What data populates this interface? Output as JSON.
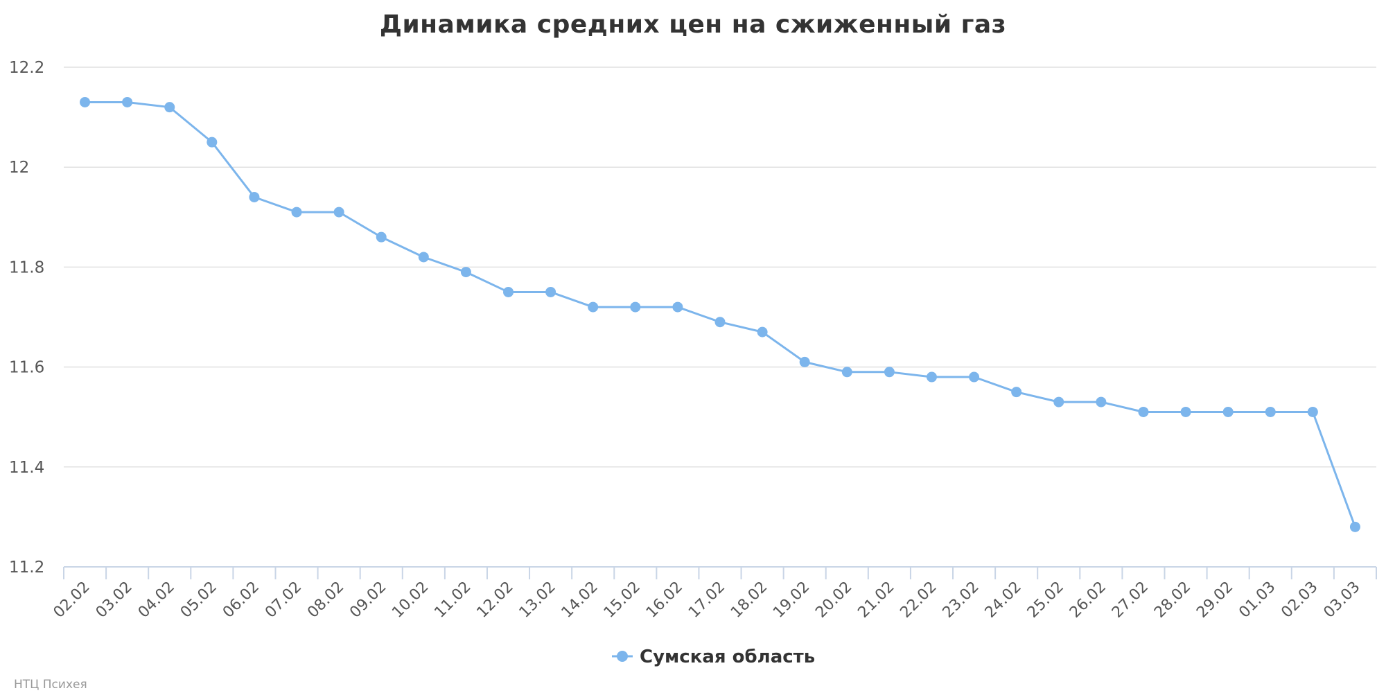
{
  "chart_data": {
    "type": "line",
    "title": "Динамика средних цен на сжиженный газ",
    "categories": [
      "02.02",
      "03.02",
      "04.02",
      "05.02",
      "06.02",
      "07.02",
      "08.02",
      "09.02",
      "10.02",
      "11.02",
      "12.02",
      "13.02",
      "14.02",
      "15.02",
      "16.02",
      "17.02",
      "18.02",
      "19.02",
      "20.02",
      "21.02",
      "22.02",
      "23.02",
      "24.02",
      "25.02",
      "26.02",
      "27.02",
      "28.02",
      "29.02",
      "01.03",
      "02.03",
      "03.03"
    ],
    "series": [
      {
        "name": "Сумская область",
        "color": "#7cb5ec",
        "values": [
          12.13,
          12.13,
          12.12,
          12.05,
          11.94,
          11.91,
          11.91,
          11.86,
          11.82,
          11.79,
          11.75,
          11.75,
          11.72,
          11.72,
          11.72,
          11.69,
          11.67,
          11.61,
          11.59,
          11.59,
          11.58,
          11.58,
          11.55,
          11.53,
          11.53,
          11.51,
          11.51,
          11.51,
          11.51,
          11.51,
          11.28
        ]
      }
    ],
    "ylim": [
      11.2,
      12.2
    ],
    "yticks": [
      "11.2",
      "11.4",
      "11.6",
      "11.8",
      "12",
      "12.2"
    ],
    "xlabel": "",
    "ylabel": "",
    "grid": true,
    "legend": "bottom-center"
  },
  "credit": "НТЦ Психея"
}
